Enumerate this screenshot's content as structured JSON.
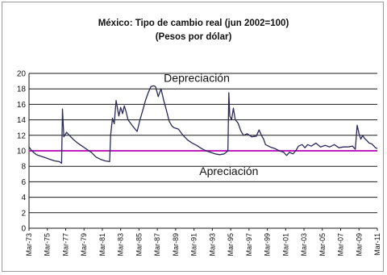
{
  "chart_data": {
    "type": "line",
    "title": "México: Tipo de cambio real (jun 2002=100)",
    "subtitle": "(Pesos por dólar)",
    "ylim": [
      0,
      20
    ],
    "yticks": [
      0,
      2,
      4,
      6,
      8,
      10,
      12,
      14,
      16,
      18,
      20
    ],
    "xlim": [
      1973.2,
      2011.2
    ],
    "xtick_labels": [
      "Mar-73",
      "Mar-75",
      "Mar-77",
      "Mar-79",
      "Mar-81",
      "Mar-83",
      "Mar-85",
      "Mar-87",
      "Mar-89",
      "Mar-91",
      "Mar-93",
      "Mar-95",
      "Mar-97",
      "Mar-99",
      "Mar-01",
      "Mar-03",
      "Mar-05",
      "Mar-07",
      "Mar-09",
      "Mar-11"
    ],
    "grid": true,
    "reference_line": {
      "value": 10,
      "color": "#c020c0"
    },
    "annotations": [
      {
        "text": "Depreciación",
        "x": 1991.5,
        "y": 18.9
      },
      {
        "text": "Apreciación",
        "x": 1995.0,
        "y": 6.9
      }
    ],
    "series": [
      {
        "color": "#2a2a5a",
        "x": [
          1973.2,
          1973.5,
          1974.0,
          1974.5,
          1975.0,
          1975.5,
          1976.0,
          1976.5,
          1976.75,
          1976.85,
          1977.0,
          1977.3,
          1977.6,
          1978.0,
          1978.5,
          1979.0,
          1979.5,
          1980.0,
          1980.5,
          1981.0,
          1981.5,
          1982.0,
          1982.1,
          1982.3,
          1982.5,
          1982.7,
          1983.0,
          1983.2,
          1983.4,
          1983.6,
          1983.8,
          1984.0,
          1984.5,
          1985.0,
          1985.3,
          1985.6,
          1985.9,
          1986.2,
          1986.5,
          1986.8,
          1987.0,
          1987.3,
          1987.6,
          1987.9,
          1988.2,
          1988.5,
          1988.8,
          1989.0,
          1989.5,
          1990.0,
          1990.5,
          1991.0,
          1991.5,
          1992.0,
          1992.5,
          1993.0,
          1993.5,
          1994.0,
          1994.5,
          1994.9,
          1995.0,
          1995.1,
          1995.3,
          1995.5,
          1995.7,
          1996.0,
          1996.3,
          1996.6,
          1997.0,
          1997.5,
          1998.0,
          1998.3,
          1998.6,
          1998.8,
          1999.0,
          1999.5,
          2000.0,
          2000.5,
          2001.0,
          2001.3,
          2001.6,
          2002.0,
          2002.3,
          2002.6,
          2003.0,
          2003.3,
          2003.6,
          2004.0,
          2004.5,
          2005.0,
          2005.5,
          2006.0,
          2006.5,
          2007.0,
          2007.5,
          2008.0,
          2008.5,
          2008.8,
          2009.0,
          2009.2,
          2009.4,
          2009.6,
          2009.8,
          2010.0,
          2010.3,
          2010.6,
          2011.0,
          2011.2
        ],
        "y": [
          10.5,
          10.0,
          9.5,
          9.3,
          9.1,
          8.9,
          8.7,
          8.6,
          8.4,
          15.4,
          11.8,
          12.4,
          12.0,
          11.5,
          11.0,
          10.6,
          10.2,
          9.8,
          9.2,
          8.9,
          8.7,
          8.6,
          12.0,
          14.2,
          13.5,
          16.5,
          14.5,
          15.6,
          14.8,
          15.8,
          15.0,
          14.0,
          13.2,
          12.5,
          14.0,
          15.2,
          16.5,
          17.5,
          18.3,
          18.4,
          18.3,
          17.0,
          18.0,
          16.5,
          15.2,
          13.8,
          13.2,
          13.0,
          12.8,
          12.0,
          11.4,
          11.0,
          10.7,
          10.3,
          10.0,
          9.8,
          9.6,
          9.5,
          9.6,
          10.0,
          17.5,
          14.5,
          14.0,
          15.5,
          14.0,
          13.6,
          12.6,
          12.0,
          12.2,
          11.8,
          11.9,
          12.7,
          11.9,
          11.5,
          10.8,
          10.5,
          10.3,
          10.0,
          9.8,
          9.4,
          9.8,
          9.6,
          10.0,
          10.6,
          10.8,
          10.4,
          10.8,
          10.6,
          11.0,
          10.5,
          10.7,
          10.5,
          10.8,
          10.4,
          10.5,
          10.5,
          10.6,
          10.2,
          13.3,
          12.2,
          11.5,
          12.0,
          11.6,
          11.4,
          11.0,
          10.9,
          10.4,
          10.3
        ]
      }
    ]
  }
}
